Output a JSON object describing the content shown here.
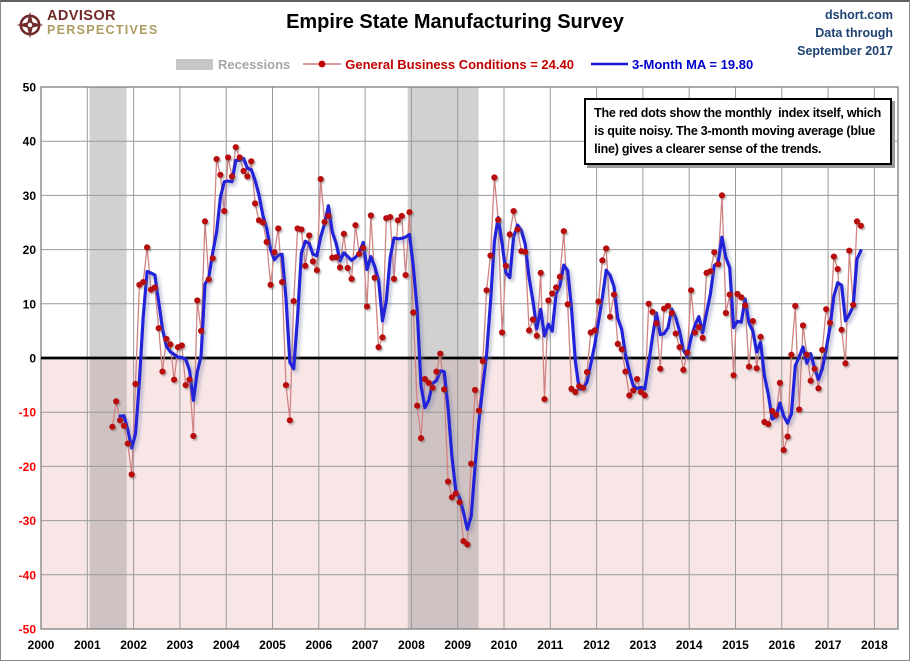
{
  "header": {
    "logo_line1": "ADVISOR",
    "logo_line2": "PERSPECTIVES",
    "title": "Empire State Manufacturing Survey",
    "source_site": "dshort.com",
    "source_line2": "Data through",
    "source_line3": "September 2017"
  },
  "legend": {
    "recessions_label": "Recessions",
    "series1_label": "General Business Conditions = 24.40",
    "series2_label": "3-Month MA = 19.80"
  },
  "annotation": {
    "line1": "The red dots show the monthly  index itself, which",
    "line2": "is quite noisy. The 3-month moving average (blue",
    "line3": "line) gives a clearer sense of the trends."
  },
  "colors": {
    "accent_red": "#C00000",
    "dot_red": "#B80A0A",
    "connector_red": "#D08484",
    "ma_blue": "#2020D8",
    "legend_blue": "#0000CC",
    "recessions_gray": "#A6A6A6",
    "swatch_gray": "#C6C6C6",
    "band_gray": "#D1D1D1",
    "band_gray_below": "#CFC2C2",
    "below_zero_fill": "#F8E6E6",
    "grid": "#9A9A9A",
    "plot_border": "#7F7F7F",
    "zero_line": "#000000",
    "neg_tick_red": "#FF0000",
    "header_navy": "#1D4273",
    "logo_maroon": "#702A2A",
    "logo_gold": "#AD9C62"
  },
  "chart_data": {
    "type": "line",
    "title": "Empire State Manufacturing Survey",
    "xlabel": "",
    "ylabel": "",
    "xlim": [
      2000,
      2018.55
    ],
    "ylim": [
      -50,
      50
    ],
    "grid": true,
    "x_ticks": [
      "2000",
      "2001",
      "2002",
      "2003",
      "2004",
      "2005",
      "2006",
      "2007",
      "2008",
      "2009",
      "2010",
      "2011",
      "2012",
      "2013",
      "2014",
      "2015",
      "2016",
      "2017",
      "2018"
    ],
    "y_ticks": [
      50,
      40,
      30,
      20,
      10,
      0,
      -10,
      -20,
      -30,
      -40,
      -50
    ],
    "x_start": {
      "year": 2001,
      "month": 7
    },
    "frequency": "monthly",
    "series": [
      {
        "name": "General Business Conditions",
        "style": "red-dots",
        "last_value": 24.4
      },
      {
        "name": "3-Month MA",
        "style": "blue-line",
        "last_value": 19.8,
        "derived": "trailing 3-month average of monthly values"
      }
    ],
    "monthly_values": [
      -12.7,
      -8.0,
      -11.5,
      -12.5,
      -15.8,
      -21.5,
      -4.8,
      13.5,
      14.0,
      20.4,
      12.6,
      13.0,
      5.5,
      -2.5,
      3.5,
      2.5,
      -4.0,
      2.0,
      2.3,
      -5.0,
      -4.0,
      -14.4,
      10.6,
      5.0,
      25.2,
      14.5,
      18.4,
      36.7,
      33.8,
      27.1,
      37.0,
      33.5,
      38.9,
      37.0,
      34.5,
      33.5,
      36.3,
      28.5,
      25.4,
      25.0,
      21.4,
      13.5,
      19.5,
      23.9,
      14.0,
      -5.0,
      -11.5,
      10.5,
      23.9,
      23.7,
      17.0,
      22.6,
      17.8,
      16.2,
      33.0,
      25.1,
      26.2,
      18.5,
      18.6,
      16.7,
      22.9,
      16.6,
      14.6,
      24.5,
      19.2,
      20.3,
      9.5,
      26.3,
      14.8,
      2.0,
      3.8,
      25.8,
      26.0,
      14.6,
      25.4,
      26.2,
      15.3,
      26.9,
      8.4,
      -8.8,
      -14.8,
      -3.9,
      -4.6,
      -5.5,
      -2.5,
      0.8,
      -5.8,
      -22.8,
      -25.7,
      -25.0,
      -26.6,
      -33.8,
      -34.4,
      -19.5,
      -5.9,
      -9.7,
      -0.6,
      12.5,
      18.9,
      33.3,
      25.5,
      4.7,
      17.0,
      22.8,
      27.1,
      23.7,
      19.7,
      19.6,
      5.1,
      7.1,
      4.1,
      15.7,
      -7.6,
      10.6,
      11.9,
      13.0,
      15.0,
      23.4,
      9.9,
      -5.7,
      -6.3,
      -5.2,
      -5.5,
      -2.6,
      4.7,
      5.1,
      10.4,
      18.0,
      20.2,
      7.6,
      11.7,
      2.6,
      1.6,
      -2.5,
      -6.9,
      -6.0,
      -3.9,
      -6.3,
      -6.9,
      10.0,
      8.5,
      6.4,
      -2.0,
      9.1,
      9.6,
      8.3,
      4.5,
      2.0,
      -2.2,
      1.0,
      12.5,
      4.7,
      5.7,
      3.7,
      15.7,
      16.0,
      19.5,
      17.3,
      30.0,
      8.3,
      11.7,
      -3.2,
      11.8,
      11.2,
      9.7,
      -1.6,
      6.8,
      -1.9,
      3.9,
      -11.8,
      -12.2,
      -9.8,
      -10.5,
      -4.6,
      -17.0,
      -14.5,
      0.6,
      9.6,
      -9.5,
      6.0,
      0.6,
      -4.2,
      -2.0,
      -5.6,
      1.5,
      9.0,
      6.5,
      18.7,
      16.4,
      5.2,
      -1.0,
      19.8,
      9.8,
      25.2,
      24.4
    ],
    "recessions": [
      {
        "from": 2001.05,
        "to": 2001.85
      },
      {
        "from": 2007.92,
        "to": 2009.45
      }
    ],
    "legend_position": "top"
  }
}
